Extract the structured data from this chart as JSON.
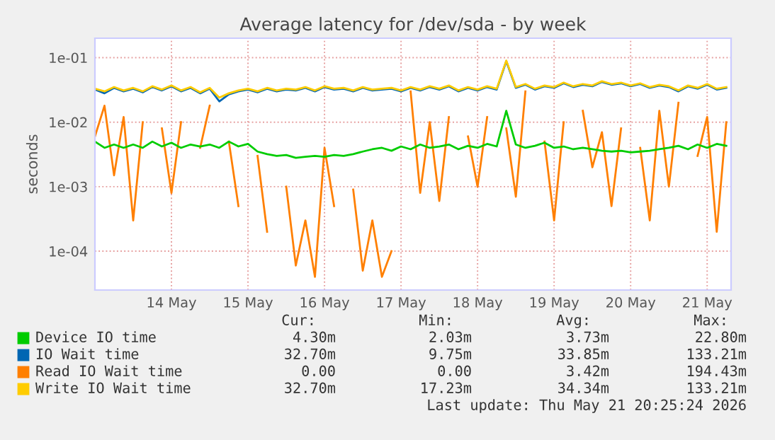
{
  "chart_data": {
    "type": "line",
    "title": "Average latency for /dev/sda - by week",
    "ylabel": "seconds",
    "log": true,
    "grid": true,
    "legend": "bottom",
    "ylim": [
      2.5e-05,
      0.2
    ],
    "yticks": [
      {
        "value": 0.0001,
        "label": "1e-04"
      },
      {
        "value": 0.001,
        "label": "1e-03"
      },
      {
        "value": 0.01,
        "label": "1e-02"
      },
      {
        "value": 0.1,
        "label": "1e-01"
      }
    ],
    "xlim": [
      "2026-05-13T12:00",
      "2026-05-21T19:30"
    ],
    "xticks": [
      {
        "value": "2026-05-14T12:00",
        "label": "14 May"
      },
      {
        "value": "2026-05-15T12:00",
        "label": "15 May"
      },
      {
        "value": "2026-05-16T12:00",
        "label": "16 May"
      },
      {
        "value": "2026-05-17T12:00",
        "label": "17 May"
      },
      {
        "value": "2026-05-18T12:00",
        "label": "18 May"
      },
      {
        "value": "2026-05-19T12:00",
        "label": "19 May"
      },
      {
        "value": "2026-05-20T12:00",
        "label": "20 May"
      },
      {
        "value": "2026-05-21T12:00",
        "label": "21 May"
      }
    ],
    "x": [
      "2026-05-13T12:00",
      "2026-05-13T15:00",
      "2026-05-13T18:00",
      "2026-05-13T21:00",
      "2026-05-14T00:00",
      "2026-05-14T03:00",
      "2026-05-14T06:00",
      "2026-05-14T09:00",
      "2026-05-14T12:00",
      "2026-05-14T15:00",
      "2026-05-14T18:00",
      "2026-05-14T21:00",
      "2026-05-15T00:00",
      "2026-05-15T03:00",
      "2026-05-15T06:00",
      "2026-05-15T09:00",
      "2026-05-15T12:00",
      "2026-05-15T15:00",
      "2026-05-15T18:00",
      "2026-05-15T21:00",
      "2026-05-16T00:00",
      "2026-05-16T03:00",
      "2026-05-16T06:00",
      "2026-05-16T09:00",
      "2026-05-16T12:00",
      "2026-05-16T15:00",
      "2026-05-16T18:00",
      "2026-05-16T21:00",
      "2026-05-17T00:00",
      "2026-05-17T03:00",
      "2026-05-17T06:00",
      "2026-05-17T09:00",
      "2026-05-17T12:00",
      "2026-05-17T15:00",
      "2026-05-17T18:00",
      "2026-05-17T21:00",
      "2026-05-18T00:00",
      "2026-05-18T03:00",
      "2026-05-18T06:00",
      "2026-05-18T09:00",
      "2026-05-18T12:00",
      "2026-05-18T15:00",
      "2026-05-18T18:00",
      "2026-05-18T21:00",
      "2026-05-19T00:00",
      "2026-05-19T03:00",
      "2026-05-19T06:00",
      "2026-05-19T09:00",
      "2026-05-19T12:00",
      "2026-05-19T15:00",
      "2026-05-19T18:00",
      "2026-05-19T21:00",
      "2026-05-20T00:00",
      "2026-05-20T03:00",
      "2026-05-20T06:00",
      "2026-05-20T09:00",
      "2026-05-20T12:00",
      "2026-05-20T15:00",
      "2026-05-20T18:00",
      "2026-05-20T21:00",
      "2026-05-21T00:00",
      "2026-05-21T03:00",
      "2026-05-21T06:00",
      "2026-05-21T09:00",
      "2026-05-21T12:00",
      "2026-05-21T15:00",
      "2026-05-21T18:00"
    ],
    "series": [
      {
        "name": "Read IO Wait time",
        "color": "#ff7f00",
        "values": [
          0.006,
          0.018,
          0.0015,
          0.012,
          0.0003,
          0.01,
          null,
          0.008,
          0.0008,
          0.01,
          null,
          0.004,
          0.018,
          null,
          0.005,
          0.0005,
          null,
          0.003,
          0.0002,
          null,
          0.001,
          6e-05,
          0.0003,
          4e-05,
          0.004,
          0.0005,
          null,
          0.0009,
          5e-05,
          0.0003,
          4e-05,
          0.0001,
          null,
          0.03,
          0.0008,
          0.01,
          0.0006,
          0.012,
          null,
          0.006,
          0.001,
          0.012,
          null,
          0.008,
          0.0007,
          0.03,
          null,
          0.005,
          0.0003,
          0.01,
          null,
          0.015,
          0.002,
          0.007,
          0.0005,
          0.008,
          null,
          0.004,
          0.0003,
          0.015,
          0.001,
          0.02,
          null,
          0.003,
          0.012,
          0.0002,
          0.01
        ]
      },
      {
        "name": "IO Wait time",
        "color": "#0066b3",
        "values": [
          0.032,
          0.028,
          0.034,
          0.03,
          0.033,
          0.029,
          0.035,
          0.031,
          0.036,
          0.03,
          0.034,
          0.028,
          0.033,
          0.021,
          0.027,
          0.03,
          0.032,
          0.029,
          0.033,
          0.03,
          0.032,
          0.031,
          0.034,
          0.03,
          0.035,
          0.032,
          0.033,
          0.03,
          0.034,
          0.031,
          0.032,
          0.033,
          0.03,
          0.034,
          0.031,
          0.035,
          0.032,
          0.036,
          0.03,
          0.034,
          0.031,
          0.035,
          0.032,
          0.088,
          0.034,
          0.038,
          0.032,
          0.036,
          0.034,
          0.04,
          0.035,
          0.038,
          0.036,
          0.042,
          0.038,
          0.04,
          0.036,
          0.039,
          0.034,
          0.037,
          0.035,
          0.03,
          0.036,
          0.033,
          0.038,
          0.032,
          0.034
        ]
      },
      {
        "name": "Write IO Wait time",
        "color": "#ffcc00",
        "values": [
          0.033,
          0.03,
          0.035,
          0.031,
          0.034,
          0.03,
          0.036,
          0.032,
          0.037,
          0.031,
          0.035,
          0.029,
          0.034,
          0.024,
          0.028,
          0.031,
          0.033,
          0.03,
          0.034,
          0.031,
          0.033,
          0.032,
          0.035,
          0.031,
          0.036,
          0.033,
          0.034,
          0.031,
          0.035,
          0.032,
          0.033,
          0.034,
          0.031,
          0.035,
          0.032,
          0.036,
          0.033,
          0.037,
          0.031,
          0.035,
          0.032,
          0.036,
          0.033,
          0.09,
          0.035,
          0.039,
          0.033,
          0.037,
          0.035,
          0.041,
          0.036,
          0.039,
          0.037,
          0.043,
          0.039,
          0.041,
          0.037,
          0.04,
          0.035,
          0.038,
          0.036,
          0.031,
          0.037,
          0.034,
          0.039,
          0.033,
          0.035
        ]
      },
      {
        "name": "Device IO time",
        "color": "#00cc00",
        "values": [
          0.005,
          0.004,
          0.0045,
          0.004,
          0.0045,
          0.004,
          0.005,
          0.0042,
          0.0048,
          0.004,
          0.0045,
          0.0042,
          0.0045,
          0.004,
          0.005,
          0.0042,
          0.0046,
          0.0035,
          0.0032,
          0.003,
          0.0031,
          0.0028,
          0.0029,
          0.003,
          0.0029,
          0.0031,
          0.003,
          0.0032,
          0.0035,
          0.0038,
          0.004,
          0.0036,
          0.0042,
          0.0038,
          0.0045,
          0.004,
          0.0042,
          0.0045,
          0.0038,
          0.0043,
          0.004,
          0.0046,
          0.0042,
          0.015,
          0.0045,
          0.004,
          0.0043,
          0.0048,
          0.004,
          0.0042,
          0.0038,
          0.004,
          0.0038,
          0.0036,
          0.0035,
          0.0036,
          0.0034,
          0.0035,
          0.0036,
          0.0038,
          0.004,
          0.0043,
          0.0038,
          0.0045,
          0.004,
          0.0046,
          0.0043
        ]
      }
    ],
    "annotations": [
      "Cur:",
      "Min:",
      "Avg:",
      "Max:",
      "4.30m",
      "2.03m",
      "3.73m",
      "22.80m",
      "32.70m",
      "9.75m",
      "33.85m",
      "133.21m",
      "0.00",
      "0.00",
      "3.42m",
      "194.43m",
      "32.70m",
      "17.23m",
      "34.34m",
      "133.21m",
      "Last update: Thu May 21 20:25:24 2026"
    ]
  }
}
